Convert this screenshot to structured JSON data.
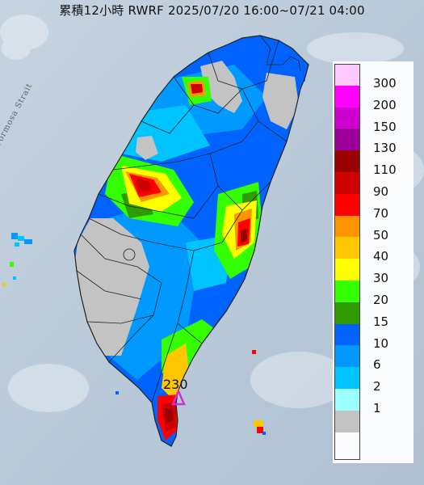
{
  "title": "累積12小時 RWRF 2025/07/20 16:00~07/21 04:00",
  "sea_label": "Formosa Strait",
  "peak": {
    "value_label": "230",
    "icon": "triangle-marker-icon",
    "color": "#cc33cc"
  },
  "legend": {
    "entries": [
      {
        "label": "300",
        "color": "#fdc9ff"
      },
      {
        "label": "200",
        "color": "#fe00fe"
      },
      {
        "label": "150",
        "color": "#ce00d0"
      },
      {
        "label": "130",
        "color": "#9a0099"
      },
      {
        "label": "110",
        "color": "#9b0000"
      },
      {
        "label": "90",
        "color": "#cf0000"
      },
      {
        "label": "70",
        "color": "#ff0000"
      },
      {
        "label": "50",
        "color": "#fe9500"
      },
      {
        "label": "40",
        "color": "#ffc700"
      },
      {
        "label": "30",
        "color": "#ffff00"
      },
      {
        "label": "20",
        "color": "#33ff00"
      },
      {
        "label": "15",
        "color": "#309b00"
      },
      {
        "label": "10",
        "color": "#0163ff"
      },
      {
        "label": "6",
        "color": "#0099ff"
      },
      {
        "label": "2",
        "color": "#00c4ff"
      },
      {
        "label": "1",
        "color": "#9bffff"
      },
      {
        "label": "",
        "color": "#c3c3c3"
      }
    ]
  },
  "colors": {
    "sea": "#b9c9d8",
    "land_dry": "#c3c3c3",
    "boundary": "#222222"
  }
}
